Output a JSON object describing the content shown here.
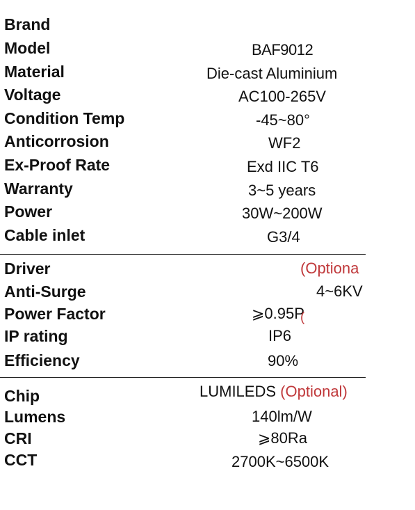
{
  "section1": {
    "brand": {
      "label": "Brand",
      "value": ""
    },
    "model": {
      "label": "Model",
      "value": "BAF9012"
    },
    "material": {
      "label": "Material",
      "value": "Die-cast Aluminium"
    },
    "voltage": {
      "label": "Voltage",
      "value": "AC100-265V"
    },
    "condition_temp": {
      "label": "Condition Temp",
      "value": "-45~80°"
    },
    "anticorrosion": {
      "label": "Anticorrosion",
      "value": "WF2"
    },
    "ex_proof_rate": {
      "label": "Ex-Proof Rate",
      "value": "Exd IIC T6"
    },
    "warranty": {
      "label": "Warranty",
      "value": "3~5 years"
    },
    "power": {
      "label": "Power",
      "value": "30W~200W"
    },
    "cable_inlet": {
      "label": "Cable inlet",
      "value": "G3/4"
    }
  },
  "section2": {
    "driver": {
      "label": "Driver",
      "optional": "(Optiona"
    },
    "anti_surge": {
      "label": "Anti-Surge",
      "value": "4~6KV"
    },
    "power_factor": {
      "label": "Power Factor",
      "value": "⩾0.95P",
      "mark": "("
    },
    "ip_rating": {
      "label": "IP rating",
      "value": "IP6"
    },
    "efficiency": {
      "label": "Efficiency",
      "value": "90%"
    }
  },
  "section3": {
    "chip": {
      "label": "Chip",
      "value": "LUMILEDS",
      "optional": "(Optional)"
    },
    "lumens": {
      "label": "Lumens",
      "value": "140lm/W"
    },
    "cri": {
      "label": "CRI",
      "value": "⩾80Ra"
    },
    "cct": {
      "label": "CCT",
      "value": "2700K~6500K"
    }
  },
  "colors": {
    "text": "#111111",
    "optional_accent": "#c0393b",
    "divider": "#222222"
  }
}
